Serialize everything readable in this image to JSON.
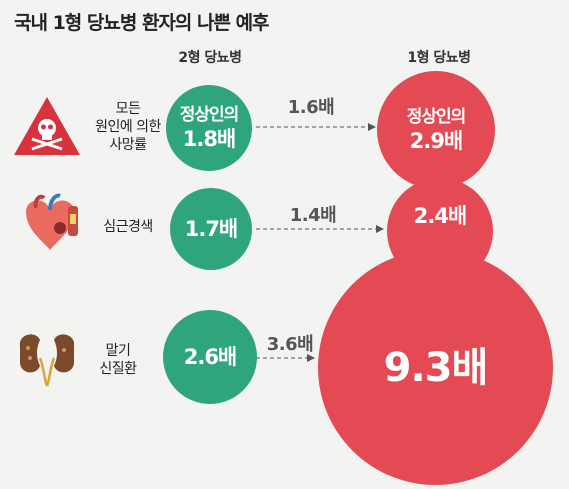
{
  "title": "국내 1형 당뇨병 환자의 나쁜 예후",
  "columns": {
    "type2": "2형 당뇨병",
    "type1": "1형 당뇨병"
  },
  "rows": [
    {
      "label_lines": [
        "모든",
        "원인에 의한",
        "사망률"
      ],
      "icon": "skull-warning-icon",
      "type2": {
        "sub": "정상인의",
        "value": "1.8배"
      },
      "ratio": "1.6배",
      "type1": {
        "sub": "정상인의",
        "value": "2.9배"
      }
    },
    {
      "label_lines": [
        "심근경색"
      ],
      "icon": "heart-icon",
      "type2": {
        "sub": "",
        "value": "1.7배"
      },
      "ratio": "1.4배",
      "type1": {
        "sub": "",
        "value": "2.4배"
      }
    },
    {
      "label_lines": [
        "말기",
        "신질환"
      ],
      "icon": "kidney-icon",
      "type2": {
        "sub": "",
        "value": "2.6배"
      },
      "ratio": "3.6배",
      "type1": {
        "sub": "",
        "value": "9.3배"
      }
    }
  ],
  "colors": {
    "type2": "#2fa57b",
    "type1": "#e44a53",
    "background": "#f3f4f1",
    "warning": "#d8323c"
  }
}
